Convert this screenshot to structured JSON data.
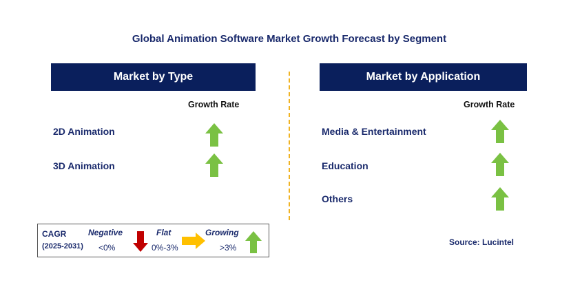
{
  "title": "Global Animation Software Market Growth Forecast by Segment",
  "left_panel": {
    "header": "Market by Type",
    "growth_rate_label": "Growth Rate",
    "items": [
      {
        "label": "2D Animation",
        "trend": "growing"
      },
      {
        "label": "3D Animation",
        "trend": "growing"
      }
    ]
  },
  "right_panel": {
    "header": "Market by Application",
    "growth_rate_label": "Growth Rate",
    "items": [
      {
        "label": "Media & Entertainment",
        "trend": "growing"
      },
      {
        "label": "Education",
        "trend": "growing"
      },
      {
        "label": "Others",
        "trend": "growing"
      }
    ]
  },
  "legend": {
    "cagr_label": "CAGR",
    "period": "(2025-2031)",
    "negative_label": "Negative",
    "negative_value": "<0%",
    "flat_label": "Flat",
    "flat_value": "0%-3%",
    "growing_label": "Growing",
    "growing_value": ">3%"
  },
  "source": "Source: Lucintel",
  "colors": {
    "header_bg": "#0a1f5c",
    "growing": "#7ac143",
    "negative": "#c00000",
    "flat": "#ffc000",
    "divider": "#f0b323"
  }
}
